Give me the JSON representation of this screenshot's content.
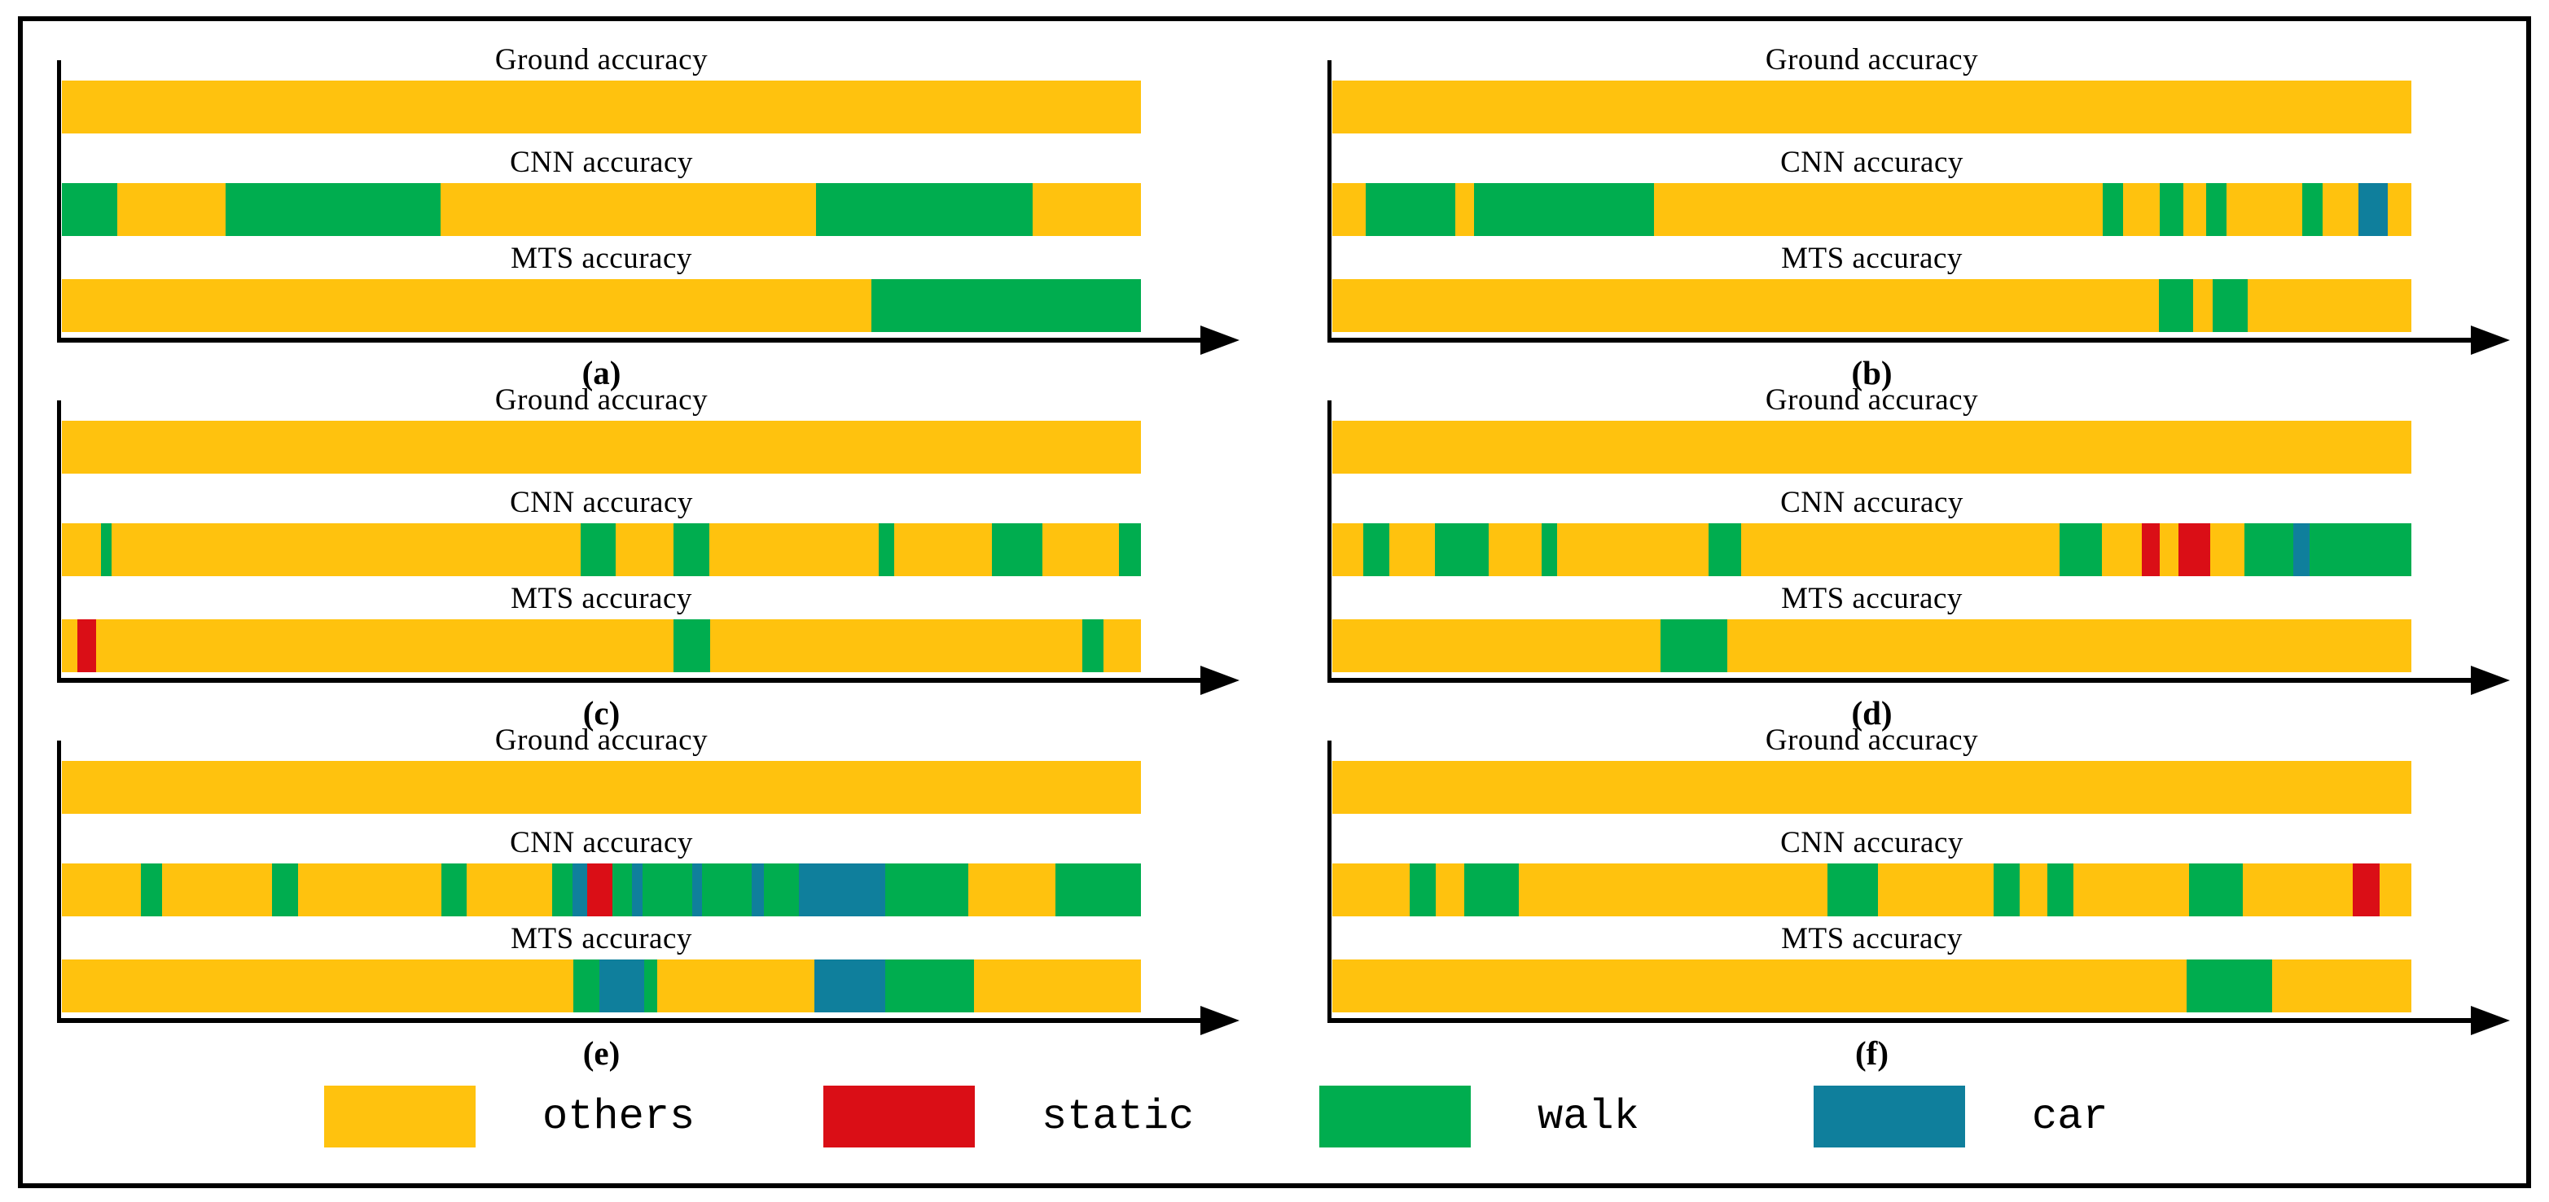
{
  "chart_data": {
    "type": "timeline",
    "title": "",
    "description": "Six panels (a-f); each panel shows three horizontal segmented timeline bars comparing activity classification over time: Ground accuracy, CNN accuracy, MTS accuracy. Segment widths are percent of bar length.",
    "classes": [
      "others",
      "static",
      "walk",
      "car"
    ],
    "colors": {
      "others": "#FFC20E",
      "static": "#DA0E16",
      "walk": "#00AD4F",
      "car": "#0F7F9C"
    },
    "axis": {
      "ticks": false,
      "arrow": true
    },
    "panels": [
      {
        "id": "a",
        "label": "(a)",
        "bars": [
          {
            "title": "Ground accuracy",
            "segments": [
              {
                "c": "others",
                "w": 100
              }
            ]
          },
          {
            "title": "CNN accuracy",
            "segments": [
              {
                "c": "walk",
                "w": 5.1
              },
              {
                "c": "others",
                "w": 10.1
              },
              {
                "c": "walk",
                "w": 19.9
              },
              {
                "c": "others",
                "w": 34.8
              },
              {
                "c": "walk",
                "w": 20.1
              },
              {
                "c": "others",
                "w": 10.0
              }
            ]
          },
          {
            "title": "MTS accuracy",
            "segments": [
              {
                "c": "others",
                "w": 75.0
              },
              {
                "c": "walk",
                "w": 25.0
              }
            ]
          }
        ]
      },
      {
        "id": "b",
        "label": "(b)",
        "bars": [
          {
            "title": "Ground accuracy",
            "segments": [
              {
                "c": "others",
                "w": 100
              }
            ]
          },
          {
            "title": "CNN accuracy",
            "segments": [
              {
                "c": "others",
                "w": 3.1
              },
              {
                "c": "walk",
                "w": 8.3
              },
              {
                "c": "others",
                "w": 1.7
              },
              {
                "c": "walk",
                "w": 16.7
              },
              {
                "c": "others",
                "w": 41.6
              },
              {
                "c": "walk",
                "w": 1.9
              },
              {
                "c": "others",
                "w": 3.4
              },
              {
                "c": "walk",
                "w": 2.2
              },
              {
                "c": "others",
                "w": 2.1
              },
              {
                "c": "walk",
                "w": 1.9
              },
              {
                "c": "others",
                "w": 7.0
              },
              {
                "c": "walk",
                "w": 1.9
              },
              {
                "c": "others",
                "w": 3.3
              },
              {
                "c": "car",
                "w": 2.7
              },
              {
                "c": "others",
                "w": 2.2
              }
            ]
          },
          {
            "title": "MTS accuracy",
            "segments": [
              {
                "c": "others",
                "w": 76.6
              },
              {
                "c": "walk",
                "w": 3.2
              },
              {
                "c": "others",
                "w": 1.8
              },
              {
                "c": "walk",
                "w": 3.2
              },
              {
                "c": "others",
                "w": 15.2
              }
            ]
          }
        ]
      },
      {
        "id": "c",
        "label": "(c)",
        "bars": [
          {
            "title": "Ground accuracy",
            "segments": [
              {
                "c": "others",
                "w": 100
              }
            ]
          },
          {
            "title": "CNN accuracy",
            "segments": [
              {
                "c": "others",
                "w": 3.6
              },
              {
                "c": "walk",
                "w": 1.0
              },
              {
                "c": "others",
                "w": 43.5
              },
              {
                "c": "walk",
                "w": 3.2
              },
              {
                "c": "others",
                "w": 5.4
              },
              {
                "c": "walk",
                "w": 3.3
              },
              {
                "c": "others",
                "w": 15.7
              },
              {
                "c": "walk",
                "w": 1.4
              },
              {
                "c": "others",
                "w": 9.1
              },
              {
                "c": "walk",
                "w": 4.7
              },
              {
                "c": "others",
                "w": 7.1
              },
              {
                "c": "walk",
                "w": 2.0
              }
            ]
          },
          {
            "title": "MTS accuracy",
            "segments": [
              {
                "c": "others",
                "w": 1.4
              },
              {
                "c": "static",
                "w": 1.8
              },
              {
                "c": "others",
                "w": 53.5
              },
              {
                "c": "walk",
                "w": 3.4
              },
              {
                "c": "others",
                "w": 34.5
              },
              {
                "c": "walk",
                "w": 1.9
              },
              {
                "c": "others",
                "w": 3.5
              }
            ]
          }
        ]
      },
      {
        "id": "d",
        "label": "(d)",
        "bars": [
          {
            "title": "Ground accuracy",
            "segments": [
              {
                "c": "others",
                "w": 100
              }
            ]
          },
          {
            "title": "CNN accuracy",
            "segments": [
              {
                "c": "others",
                "w": 2.9
              },
              {
                "c": "walk",
                "w": 2.4
              },
              {
                "c": "others",
                "w": 4.2
              },
              {
                "c": "walk",
                "w": 5.0
              },
              {
                "c": "others",
                "w": 4.9
              },
              {
                "c": "walk",
                "w": 1.4
              },
              {
                "c": "others",
                "w": 14.1
              },
              {
                "c": "walk",
                "w": 3.0
              },
              {
                "c": "others",
                "w": 29.5
              },
              {
                "c": "walk",
                "w": 3.9
              },
              {
                "c": "others",
                "w": 3.7
              },
              {
                "c": "static",
                "w": 1.7
              },
              {
                "c": "others",
                "w": 1.7
              },
              {
                "c": "static",
                "w": 3.0
              },
              {
                "c": "others",
                "w": 3.1
              },
              {
                "c": "walk",
                "w": 4.6
              },
              {
                "c": "car",
                "w": 1.5
              },
              {
                "c": "walk",
                "w": 9.4
              }
            ]
          },
          {
            "title": "MTS accuracy",
            "segments": [
              {
                "c": "others",
                "w": 30.4
              },
              {
                "c": "walk",
                "w": 6.2
              },
              {
                "c": "others",
                "w": 63.4
              }
            ]
          }
        ]
      },
      {
        "id": "e",
        "label": "(e)",
        "bars": [
          {
            "title": "Ground accuracy",
            "segments": [
              {
                "c": "others",
                "w": 100
              }
            ]
          },
          {
            "title": "CNN accuracy",
            "segments": [
              {
                "c": "others",
                "w": 7.3
              },
              {
                "c": "walk",
                "w": 2.0
              },
              {
                "c": "others",
                "w": 10.2
              },
              {
                "c": "walk",
                "w": 2.4
              },
              {
                "c": "others",
                "w": 13.3
              },
              {
                "c": "walk",
                "w": 2.3
              },
              {
                "c": "others",
                "w": 7.9
              },
              {
                "c": "walk",
                "w": 1.9
              },
              {
                "c": "car",
                "w": 1.4
              },
              {
                "c": "static",
                "w": 2.3
              },
              {
                "c": "walk",
                "w": 1.8
              },
              {
                "c": "car",
                "w": 1.0
              },
              {
                "c": "walk",
                "w": 4.6
              },
              {
                "c": "car",
                "w": 0.9
              },
              {
                "c": "walk",
                "w": 4.6
              },
              {
                "c": "car",
                "w": 1.2
              },
              {
                "c": "walk",
                "w": 3.2
              },
              {
                "c": "car",
                "w": 8.0
              },
              {
                "c": "walk",
                "w": 7.7
              },
              {
                "c": "others",
                "w": 8.1
              },
              {
                "c": "walk",
                "w": 7.9
              }
            ]
          },
          {
            "title": "MTS accuracy",
            "segments": [
              {
                "c": "others",
                "w": 47.4
              },
              {
                "c": "walk",
                "w": 2.4
              },
              {
                "c": "car",
                "w": 4.2
              },
              {
                "c": "walk",
                "w": 1.2
              },
              {
                "c": "others",
                "w": 14.5
              },
              {
                "c": "car",
                "w": 6.6
              },
              {
                "c": "walk",
                "w": 8.2
              },
              {
                "c": "others",
                "w": 15.5
              }
            ]
          }
        ]
      },
      {
        "id": "f",
        "label": "(f)",
        "bars": [
          {
            "title": "Ground accuracy",
            "segments": [
              {
                "c": "others",
                "w": 100
              }
            ]
          },
          {
            "title": "CNN accuracy",
            "segments": [
              {
                "c": "others",
                "w": 7.2
              },
              {
                "c": "walk",
                "w": 2.4
              },
              {
                "c": "others",
                "w": 2.6
              },
              {
                "c": "walk",
                "w": 5.1
              },
              {
                "c": "others",
                "w": 28.6
              },
              {
                "c": "walk",
                "w": 4.7
              },
              {
                "c": "others",
                "w": 10.7
              },
              {
                "c": "walk",
                "w": 2.4
              },
              {
                "c": "others",
                "w": 2.6
              },
              {
                "c": "walk",
                "w": 2.4
              },
              {
                "c": "others",
                "w": 10.7
              },
              {
                "c": "walk",
                "w": 5.0
              },
              {
                "c": "others",
                "w": 10.2
              },
              {
                "c": "static",
                "w": 2.5
              },
              {
                "c": "others",
                "w": 2.9
              }
            ]
          },
          {
            "title": "MTS accuracy",
            "segments": [
              {
                "c": "others",
                "w": 79.2
              },
              {
                "c": "walk",
                "w": 7.9
              },
              {
                "c": "others",
                "w": 12.9
              }
            ]
          }
        ]
      }
    ]
  },
  "legend": {
    "items": [
      {
        "class": "others",
        "label": "others"
      },
      {
        "class": "static",
        "label": "static"
      },
      {
        "class": "walk",
        "label": "walk"
      },
      {
        "class": "car",
        "label": "car"
      }
    ]
  }
}
